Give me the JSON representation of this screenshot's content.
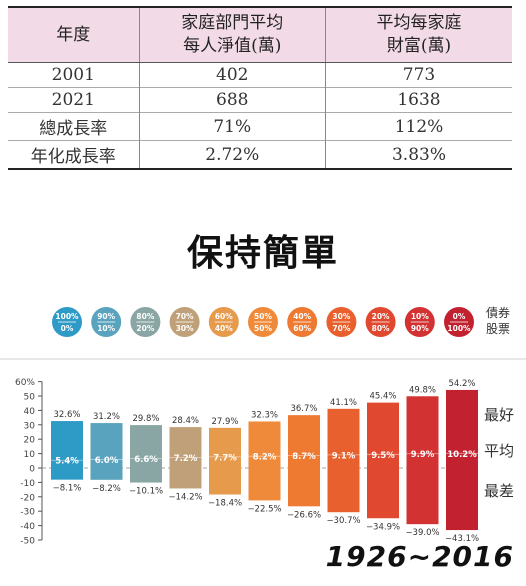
{
  "table": {
    "headers": [
      "年度",
      "家庭部門平均\n每人淨值(萬)",
      "平均每家庭\n財富(萬)"
    ],
    "rows": [
      [
        "2001",
        "402",
        "773"
      ],
      [
        "2021",
        "688",
        "1638"
      ],
      [
        "總成長率",
        "71%",
        "112%"
      ],
      [
        "年化成長率",
        "2.72%",
        "3.83%"
      ]
    ]
  },
  "headline": "保持簡單",
  "legend": {
    "bond_label": "債券",
    "stock_label": "股票",
    "allocations": [
      {
        "bond": "100%",
        "stock": "0%",
        "color": "#2e9bc6"
      },
      {
        "bond": "90%",
        "stock": "10%",
        "color": "#5aa3be"
      },
      {
        "bond": "80%",
        "stock": "20%",
        "color": "#8aa6a4"
      },
      {
        "bond": "70%",
        "stock": "30%",
        "color": "#c0a078"
      },
      {
        "bond": "60%",
        "stock": "40%",
        "color": "#e59a4c"
      },
      {
        "bond": "50%",
        "stock": "50%",
        "color": "#ef8a3a"
      },
      {
        "bond": "40%",
        "stock": "60%",
        "color": "#ed7a30"
      },
      {
        "bond": "30%",
        "stock": "70%",
        "color": "#e8602d"
      },
      {
        "bond": "20%",
        "stock": "80%",
        "color": "#e0482f"
      },
      {
        "bond": "10%",
        "stock": "90%",
        "color": "#d23231"
      },
      {
        "bond": "0%",
        "stock": "100%",
        "color": "#c2212f"
      }
    ]
  },
  "chart_data": {
    "type": "bar",
    "ylim": [
      -50,
      60
    ],
    "yticks": [
      "60%",
      "50",
      "40",
      "30",
      "20",
      "10",
      "0",
      "-10",
      "-20",
      "-30",
      "-40",
      "-50"
    ],
    "grid": false,
    "series": [
      {
        "name": "最好",
        "values": [
          32.6,
          31.2,
          29.8,
          28.4,
          27.9,
          32.3,
          36.7,
          41.1,
          45.4,
          49.8,
          54.2
        ]
      },
      {
        "name": "平均",
        "values": [
          5.4,
          6.0,
          6.6,
          7.2,
          7.7,
          8.2,
          8.7,
          9.1,
          9.5,
          9.9,
          10.2
        ]
      },
      {
        "name": "最差",
        "values": [
          -8.1,
          -8.2,
          -10.1,
          -14.2,
          -18.4,
          -22.5,
          -26.6,
          -30.7,
          -34.9,
          -39.0,
          -43.1
        ]
      }
    ],
    "best_labels": [
      "32.6%",
      "31.2%",
      "29.8%",
      "28.4%",
      "27.9%",
      "32.3%",
      "36.7%",
      "41.1%",
      "45.4%",
      "49.8%",
      "54.2%"
    ],
    "avg_labels": [
      "5.4%",
      "6.0%",
      "6.6%",
      "7.2%",
      "7.7%",
      "8.2%",
      "8.7%",
      "9.1%",
      "9.5%",
      "9.9%",
      "10.2%"
    ],
    "worst_labels": [
      "−8.1%",
      "−8.2%",
      "−10.1%",
      "−14.2%",
      "−18.4%",
      "−22.5%",
      "−26.6%",
      "−30.7%",
      "−34.9%",
      "−39.0%",
      "−43.1%"
    ],
    "colors": [
      "#2e9bc6",
      "#5aa3be",
      "#8aa6a4",
      "#c0a078",
      "#e59a4c",
      "#ef8a3a",
      "#ed7a30",
      "#e8602d",
      "#e0482f",
      "#d23231",
      "#c2212f"
    ],
    "side_labels": {
      "best": "最好",
      "average": "平均",
      "worst": "最差"
    }
  },
  "footer": "1926~2016"
}
